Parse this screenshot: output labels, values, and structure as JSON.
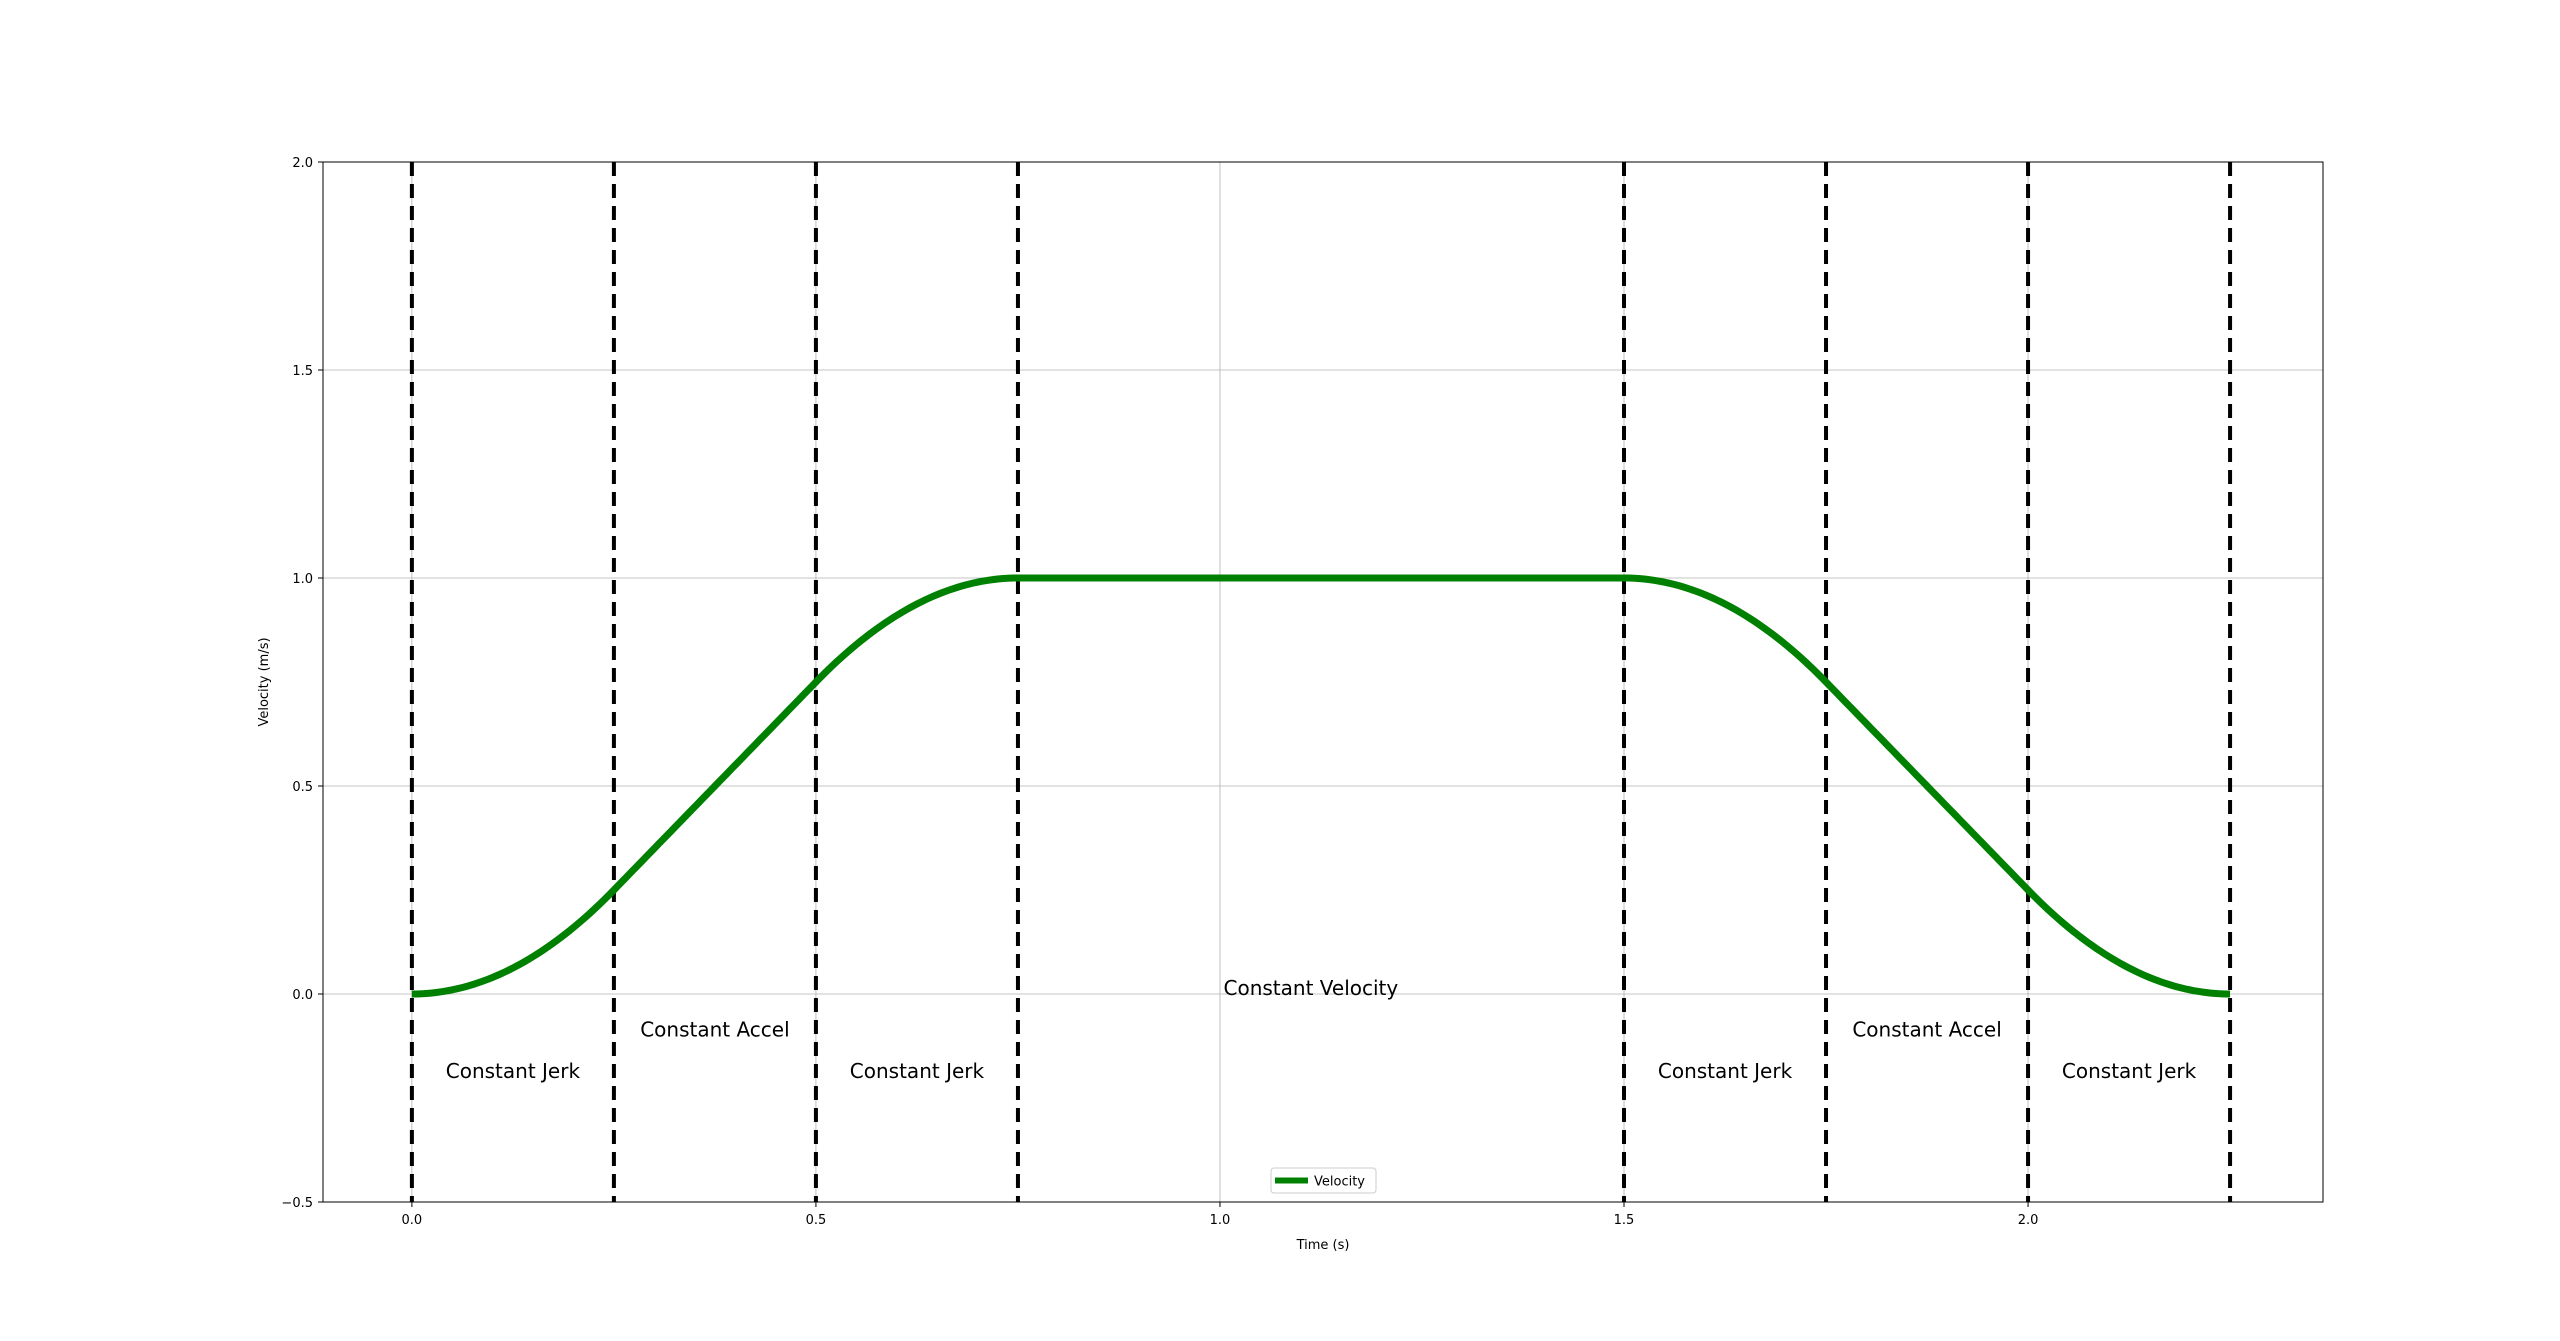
{
  "chart_data": {
    "type": "line",
    "title": "",
    "xlabel": "Time (s)",
    "ylabel": "Velocity (m/s)",
    "xlim": [
      -0.11,
      2.365
    ],
    "ylim": [
      -0.5,
      2.0
    ],
    "x_ticks": [
      "0.0",
      "0.5",
      "1.0",
      "1.5",
      "2.0"
    ],
    "y_ticks": [
      "−0.5",
      "0.0",
      "0.5",
      "1.0",
      "1.5",
      "2.0"
    ],
    "grid": true,
    "legend_position": "lower-center",
    "series": [
      {
        "name": "Velocity",
        "color": "#008000",
        "x": [
          0.0,
          0.0625,
          0.125,
          0.1875,
          0.25,
          0.5,
          0.5625,
          0.625,
          0.6875,
          0.75,
          1.5,
          1.5625,
          1.625,
          1.6875,
          1.75,
          2.0,
          2.0625,
          2.125,
          2.1875,
          2.25
        ],
        "y": [
          0.0,
          0.0156,
          0.0625,
          0.1406,
          0.25,
          0.75,
          0.8594,
          0.9375,
          0.9844,
          1.0,
          1.0,
          0.9844,
          0.9375,
          0.8594,
          0.75,
          0.25,
          0.1406,
          0.0625,
          0.0156,
          0.0
        ]
      }
    ],
    "phase_boundaries": [
      0.0,
      0.25,
      0.5,
      0.75,
      1.5,
      1.75,
      2.0,
      2.25
    ],
    "boundary_color": "#000000",
    "annotations": [
      {
        "text": "Constant Jerk",
        "x": 0.125,
        "y": -0.185
      },
      {
        "text": "Constant Accel",
        "x": 0.375,
        "y": -0.085
      },
      {
        "text": "Constant Jerk",
        "x": 0.625,
        "y": -0.185
      },
      {
        "text": "Constant Velocity",
        "x": 1.1125,
        "y": 0.015
      },
      {
        "text": "Constant Jerk",
        "x": 1.625,
        "y": -0.185
      },
      {
        "text": "Constant Accel",
        "x": 1.875,
        "y": -0.085
      },
      {
        "text": "Constant Jerk",
        "x": 2.125,
        "y": -0.185
      }
    ]
  }
}
